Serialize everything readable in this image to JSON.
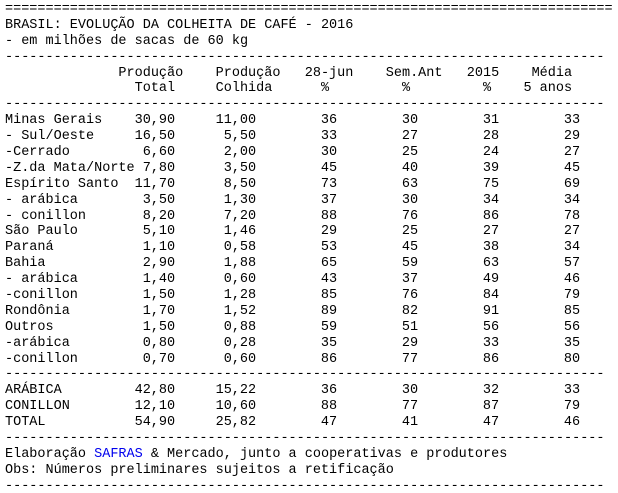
{
  "colors": {
    "background": "#ffffff",
    "text": "#000000",
    "link_blue": "#0000ee"
  },
  "report": {
    "separator_equals": "===========================================================================",
    "separator_dashes": "--------------------------------------------------------------------------",
    "title": "BRASIL: EVOLUÇÃO DA COLHEITA DE CAFÉ - 2016",
    "subtitle": "- em milhões de sacas de 60 kg",
    "header": {
      "line1": "              Produção    Produção   28-jun    Sem.Ant   2015    Média",
      "line2": "                Total     Colhida      %         %         %    5 anos",
      "columns": [
        "Produção Total",
        "Produção Colhida",
        "28-jun %",
        "Sem.Ant %",
        "2015 %",
        "Média 5 anos"
      ]
    },
    "table": {
      "body_rows": [
        [
          "Minas Gerais",
          "30,90",
          "11,00",
          "36",
          "30",
          "31",
          "33"
        ],
        [
          "- Sul/Oeste",
          "16,50",
          "5,50",
          "33",
          "27",
          "28",
          "29"
        ],
        [
          "-Cerrado",
          "6,60",
          "2,00",
          "30",
          "25",
          "24",
          "27"
        ],
        [
          "-Z.da Mata/Norte",
          "7,80",
          "3,50",
          "45",
          "40",
          "39",
          "45"
        ],
        [
          "Espírito Santo",
          "11,70",
          "8,50",
          "73",
          "63",
          "75",
          "69"
        ],
        [
          "- arábica",
          "3,50",
          "1,30",
          "37",
          "30",
          "34",
          "34"
        ],
        [
          "- conillon",
          "8,20",
          "7,20",
          "88",
          "76",
          "86",
          "78"
        ],
        [
          "São Paulo",
          "5,10",
          "1,46",
          "29",
          "25",
          "27",
          "27"
        ],
        [
          "Paraná",
          "1,10",
          "0,58",
          "53",
          "45",
          "38",
          "34"
        ],
        [
          "Bahia",
          "2,90",
          "1,88",
          "65",
          "59",
          "63",
          "57"
        ],
        [
          "- arábica",
          "1,40",
          "0,60",
          "43",
          "37",
          "49",
          "46"
        ],
        [
          "-conillon",
          "1,50",
          "1,28",
          "85",
          "76",
          "84",
          "79"
        ],
        [
          "Rondônia",
          "1,70",
          "1,52",
          "89",
          "82",
          "91",
          "85"
        ],
        [
          "Outros",
          "1,50",
          "0,88",
          "59",
          "51",
          "56",
          "56"
        ],
        [
          "-arábica",
          "0,80",
          "0,28",
          "35",
          "29",
          "33",
          "35"
        ],
        [
          "-conillon",
          "0,70",
          "0,60",
          "86",
          "77",
          "86",
          "80"
        ]
      ],
      "summary_rows": [
        [
          "ARÁBICA",
          "42,80",
          "15,22",
          "36",
          "30",
          "32",
          "33"
        ],
        [
          "CONILLON",
          "12,10",
          "10,60",
          "88",
          "77",
          "87",
          "79"
        ],
        [
          "TOTAL",
          "54,90",
          "25,82",
          "47",
          "41",
          "47",
          "46"
        ]
      ]
    },
    "footer": {
      "elaboracao_prefix": "Elaboração ",
      "elaboracao_link": "SAFRAS",
      "elaboracao_suffix": " & Mercado, junto a cooperativas e produtores",
      "obs": "Obs: Números preliminares sujeitos a retificação"
    }
  }
}
